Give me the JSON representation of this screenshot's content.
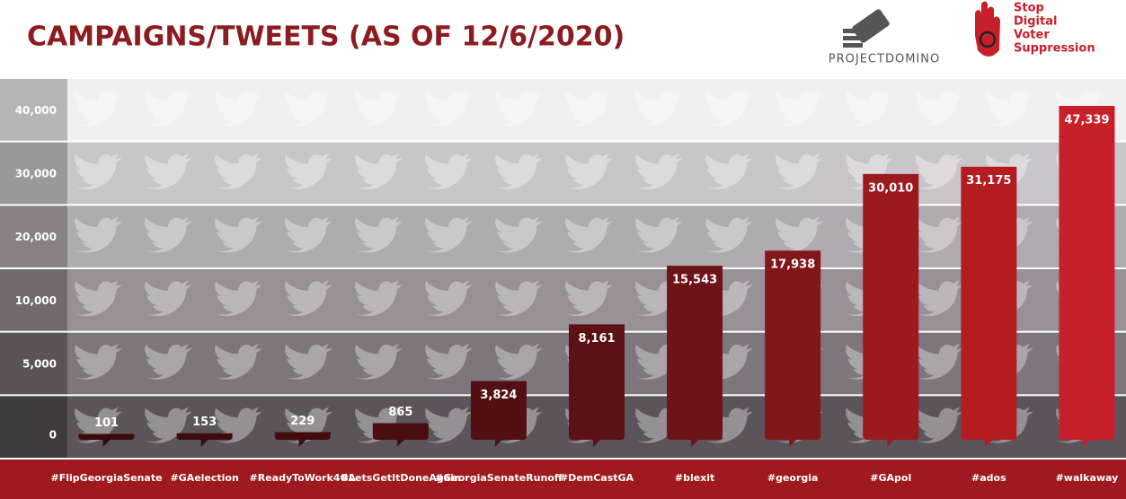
{
  "chart_data": {
    "type": "bar",
    "title": "CAMPAIGNS/TWEETS (AS OF 12/6/2020)",
    "logo_left": "PROJECTDOMINO",
    "logo_right": [
      "Stop",
      "Digital",
      "Voter",
      "Suppression"
    ],
    "categories": [
      "#FlipGeorgiaSenate",
      "#GAelection",
      "#ReadyToWork4GA",
      "#LetsGetItDoneAgain",
      "#GeorgiaSenateRunoff",
      "#DemCastGA",
      "#blexit",
      "#georgia",
      "#GApol",
      "#ados",
      "#walkaway"
    ],
    "values": [
      101,
      153,
      229,
      865,
      3824,
      8161,
      15543,
      17938,
      30010,
      31175,
      47339
    ],
    "value_labels": [
      "101",
      "153",
      "229",
      "865",
      "3,824",
      "8,161",
      "15,543",
      "17,938",
      "30,010",
      "31,175",
      "47,339"
    ],
    "colors": [
      "#3a0a0c",
      "#3d0b0d",
      "#420c0e",
      "#4a0d10",
      "#521012",
      "#5c1114",
      "#6e1317",
      "#82161a",
      "#9c191e",
      "#b51c22",
      "#c8202a"
    ],
    "ylim": [
      0,
      47339
    ],
    "yticks": [
      0,
      {
        "value": 5000,
        "label": "5,000"
      },
      {
        "value": 10000,
        "label": "10,000"
      },
      {
        "value": 20000,
        "label": "20,000"
      },
      {
        "value": 30000,
        "label": "30,000"
      },
      {
        "value": 40000,
        "label": "40,000"
      }
    ]
  }
}
